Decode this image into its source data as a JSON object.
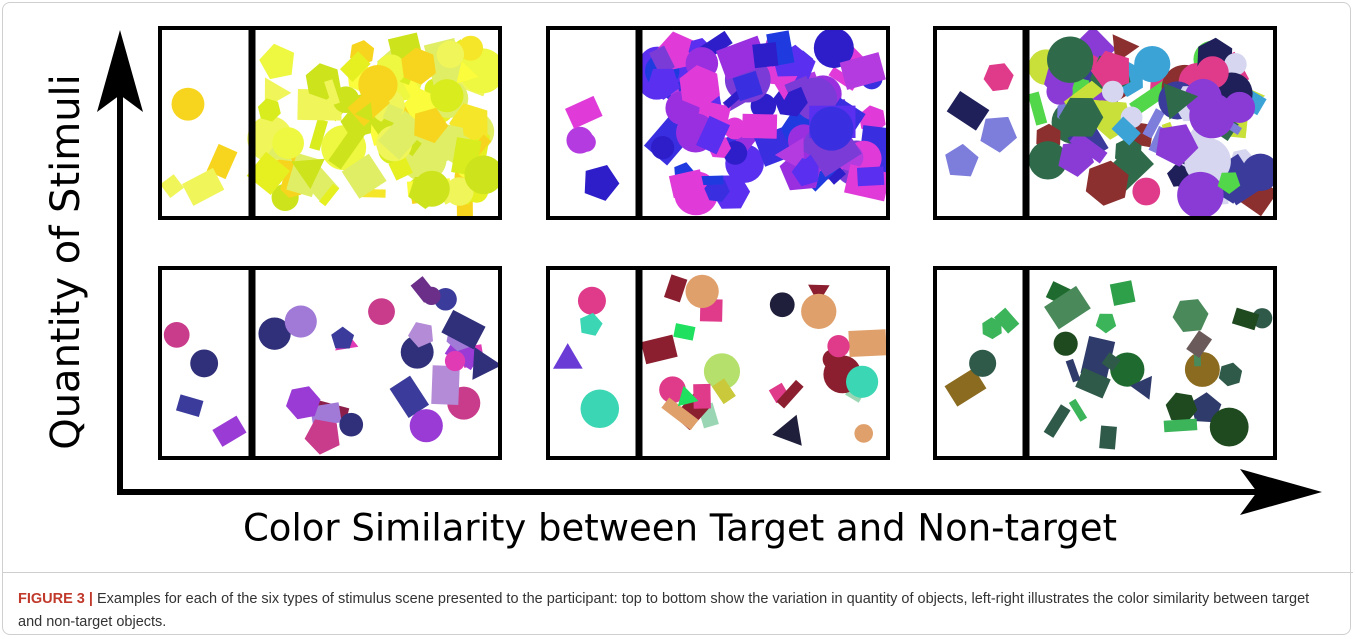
{
  "figure": {
    "y_axis_label": "Quantity of Stimuli",
    "x_axis_label": "Color Similarity between Target and Non-target",
    "caption": {
      "label": "FIGURE 3 |",
      "text": "Examples for each of the six types of stimulus scene presented to the participant: top to bottom show the variation in quantity of objects, left-right illustrates the color similarity between target and non-target objects."
    }
  }
}
